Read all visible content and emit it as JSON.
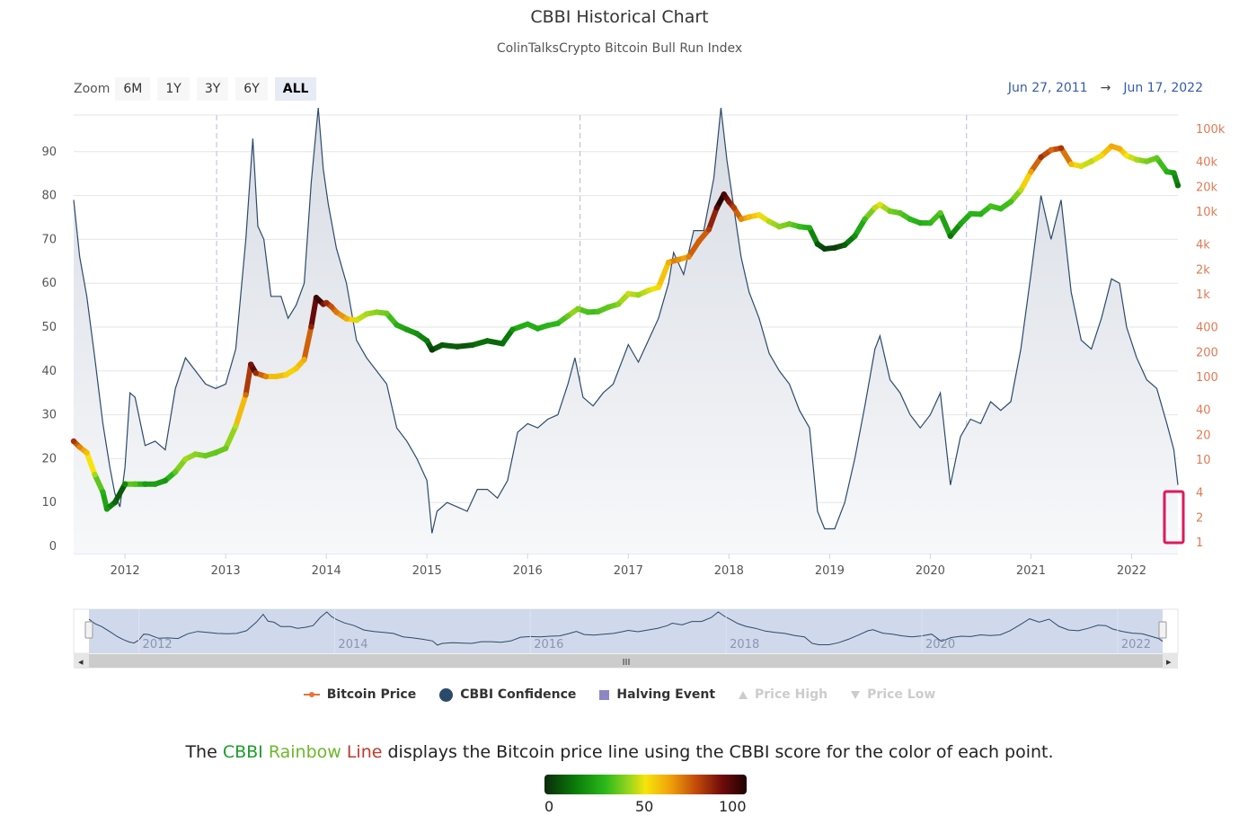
{
  "title": "CBBI Historical Chart",
  "subtitle": "ColinTalksCrypto Bitcoin Bull Run Index",
  "zoom": {
    "label": "Zoom",
    "buttons": [
      "6M",
      "1Y",
      "3Y",
      "6Y",
      "ALL"
    ],
    "active": "ALL"
  },
  "range": {
    "from": "Jun 27, 2011",
    "arrow": "→",
    "to": "Jun 17, 2022"
  },
  "colors": {
    "price_line": "#2b4a6b",
    "area_fill": "#eef0f4",
    "halving": "#8c86c7",
    "highlight": "#e0195a",
    "right_axis": "#e07b55"
  },
  "chart_data": {
    "type": "line",
    "title": "CBBI Historical Chart",
    "x_ticks": [
      "2012",
      "2013",
      "2014",
      "2015",
      "2016",
      "2017",
      "2018",
      "2019",
      "2020",
      "2021",
      "2022"
    ],
    "left_axis": {
      "label": "CBBI Confidence",
      "range": [
        0,
        100
      ],
      "ticks": [
        0,
        10,
        20,
        30,
        40,
        50,
        60,
        70,
        80,
        90
      ]
    },
    "right_axis": {
      "label": "Bitcoin Price",
      "scale": "log",
      "ticks": [
        "1",
        "2",
        "4",
        "10",
        "20",
        "40",
        "100",
        "200",
        "400",
        "1k",
        "2k",
        "4k",
        "10k",
        "20k",
        "40k",
        "100k"
      ],
      "tick_values": [
        1,
        2,
        4,
        10,
        20,
        40,
        100,
        200,
        400,
        1000,
        2000,
        4000,
        10000,
        20000,
        40000,
        100000
      ]
    },
    "halvings": [
      {
        "label": "H",
        "year": 2012.91
      },
      {
        "label": "H",
        "year": 2016.52
      },
      {
        "label": "H",
        "year": 2020.36
      }
    ],
    "series": [
      {
        "name": "CBBI Confidence",
        "points": [
          [
            2011.49,
            79
          ],
          [
            2011.55,
            66
          ],
          [
            2011.62,
            57
          ],
          [
            2011.7,
            43
          ],
          [
            2011.78,
            28
          ],
          [
            2011.85,
            18
          ],
          [
            2011.9,
            12
          ],
          [
            2011.95,
            9
          ],
          [
            2012.0,
            18
          ],
          [
            2012.05,
            35
          ],
          [
            2012.1,
            34
          ],
          [
            2012.2,
            23
          ],
          [
            2012.3,
            24
          ],
          [
            2012.4,
            22
          ],
          [
            2012.5,
            36
          ],
          [
            2012.6,
            43
          ],
          [
            2012.7,
            40
          ],
          [
            2012.8,
            37
          ],
          [
            2012.9,
            36
          ],
          [
            2013.0,
            37
          ],
          [
            2013.1,
            45
          ],
          [
            2013.2,
            70
          ],
          [
            2013.27,
            93
          ],
          [
            2013.32,
            73
          ],
          [
            2013.38,
            70
          ],
          [
            2013.45,
            57
          ],
          [
            2013.55,
            57
          ],
          [
            2013.62,
            52
          ],
          [
            2013.7,
            55
          ],
          [
            2013.78,
            60
          ],
          [
            2013.85,
            83
          ],
          [
            2013.92,
            100
          ],
          [
            2013.97,
            86
          ],
          [
            2014.02,
            78
          ],
          [
            2014.1,
            68
          ],
          [
            2014.2,
            60
          ],
          [
            2014.3,
            47
          ],
          [
            2014.4,
            43
          ],
          [
            2014.5,
            40
          ],
          [
            2014.6,
            37
          ],
          [
            2014.7,
            27
          ],
          [
            2014.8,
            24
          ],
          [
            2014.9,
            20
          ],
          [
            2015.0,
            15
          ],
          [
            2015.05,
            3
          ],
          [
            2015.1,
            8
          ],
          [
            2015.2,
            10
          ],
          [
            2015.3,
            9
          ],
          [
            2015.4,
            8
          ],
          [
            2015.5,
            13
          ],
          [
            2015.6,
            13
          ],
          [
            2015.7,
            11
          ],
          [
            2015.8,
            15
          ],
          [
            2015.9,
            26
          ],
          [
            2016.0,
            28
          ],
          [
            2016.1,
            27
          ],
          [
            2016.2,
            29
          ],
          [
            2016.3,
            30
          ],
          [
            2016.4,
            37
          ],
          [
            2016.47,
            43
          ],
          [
            2016.55,
            34
          ],
          [
            2016.65,
            32
          ],
          [
            2016.75,
            35
          ],
          [
            2016.85,
            37
          ],
          [
            2016.95,
            43
          ],
          [
            2017.0,
            46
          ],
          [
            2017.1,
            42
          ],
          [
            2017.2,
            47
          ],
          [
            2017.3,
            52
          ],
          [
            2017.4,
            60
          ],
          [
            2017.45,
            67
          ],
          [
            2017.55,
            62
          ],
          [
            2017.65,
            72
          ],
          [
            2017.75,
            72
          ],
          [
            2017.85,
            84
          ],
          [
            2017.92,
            100
          ],
          [
            2017.98,
            88
          ],
          [
            2018.05,
            77
          ],
          [
            2018.12,
            66
          ],
          [
            2018.2,
            58
          ],
          [
            2018.3,
            52
          ],
          [
            2018.4,
            44
          ],
          [
            2018.5,
            40
          ],
          [
            2018.6,
            37
          ],
          [
            2018.7,
            31
          ],
          [
            2018.8,
            27
          ],
          [
            2018.88,
            8
          ],
          [
            2018.95,
            4
          ],
          [
            2019.05,
            4
          ],
          [
            2019.15,
            10
          ],
          [
            2019.25,
            20
          ],
          [
            2019.35,
            32
          ],
          [
            2019.45,
            45
          ],
          [
            2019.5,
            48
          ],
          [
            2019.6,
            38
          ],
          [
            2019.7,
            35
          ],
          [
            2019.8,
            30
          ],
          [
            2019.9,
            27
          ],
          [
            2020.0,
            30
          ],
          [
            2020.1,
            35
          ],
          [
            2020.2,
            14
          ],
          [
            2020.3,
            25
          ],
          [
            2020.4,
            29
          ],
          [
            2020.5,
            28
          ],
          [
            2020.6,
            33
          ],
          [
            2020.7,
            31
          ],
          [
            2020.8,
            33
          ],
          [
            2020.9,
            45
          ],
          [
            2021.0,
            62
          ],
          [
            2021.1,
            80
          ],
          [
            2021.2,
            70
          ],
          [
            2021.3,
            79
          ],
          [
            2021.4,
            58
          ],
          [
            2021.5,
            47
          ],
          [
            2021.6,
            45
          ],
          [
            2021.7,
            52
          ],
          [
            2021.8,
            61
          ],
          [
            2021.88,
            60
          ],
          [
            2021.95,
            50
          ],
          [
            2022.05,
            43
          ],
          [
            2022.15,
            38
          ],
          [
            2022.25,
            36
          ],
          [
            2022.35,
            28
          ],
          [
            2022.42,
            22
          ],
          [
            2022.46,
            14
          ]
        ]
      },
      {
        "name": "Bitcoin Price",
        "points": [
          [
            2011.49,
            16.5
          ],
          [
            2011.55,
            14
          ],
          [
            2011.62,
            12
          ],
          [
            2011.7,
            6.5
          ],
          [
            2011.78,
            4
          ],
          [
            2011.82,
            2.5
          ],
          [
            2011.9,
            3
          ],
          [
            2012.0,
            5
          ],
          [
            2012.1,
            5
          ],
          [
            2012.2,
            5
          ],
          [
            2012.3,
            5
          ],
          [
            2012.4,
            5.5
          ],
          [
            2012.5,
            7
          ],
          [
            2012.6,
            10
          ],
          [
            2012.7,
            11.5
          ],
          [
            2012.8,
            11
          ],
          [
            2012.9,
            12
          ],
          [
            2013.0,
            13.5
          ],
          [
            2013.1,
            25
          ],
          [
            2013.2,
            60
          ],
          [
            2013.25,
            140
          ],
          [
            2013.3,
            110
          ],
          [
            2013.4,
            100
          ],
          [
            2013.5,
            100
          ],
          [
            2013.6,
            105
          ],
          [
            2013.7,
            125
          ],
          [
            2013.78,
            160
          ],
          [
            2013.85,
            400
          ],
          [
            2013.9,
            900
          ],
          [
            2013.97,
            750
          ],
          [
            2014.0,
            780
          ],
          [
            2014.05,
            700
          ],
          [
            2014.1,
            600
          ],
          [
            2014.2,
            500
          ],
          [
            2014.3,
            480
          ],
          [
            2014.4,
            570
          ],
          [
            2014.5,
            600
          ],
          [
            2014.6,
            580
          ],
          [
            2014.7,
            420
          ],
          [
            2014.8,
            370
          ],
          [
            2014.9,
            330
          ],
          [
            2015.0,
            270
          ],
          [
            2015.05,
            210
          ],
          [
            2015.15,
            240
          ],
          [
            2015.3,
            230
          ],
          [
            2015.45,
            240
          ],
          [
            2015.6,
            270
          ],
          [
            2015.75,
            250
          ],
          [
            2015.85,
            370
          ],
          [
            2016.0,
            430
          ],
          [
            2016.1,
            380
          ],
          [
            2016.2,
            415
          ],
          [
            2016.3,
            440
          ],
          [
            2016.4,
            540
          ],
          [
            2016.5,
            660
          ],
          [
            2016.6,
            600
          ],
          [
            2016.7,
            610
          ],
          [
            2016.8,
            690
          ],
          [
            2016.9,
            750
          ],
          [
            2017.0,
            1000
          ],
          [
            2017.1,
            970
          ],
          [
            2017.2,
            1100
          ],
          [
            2017.3,
            1200
          ],
          [
            2017.4,
            2400
          ],
          [
            2017.5,
            2600
          ],
          [
            2017.6,
            2800
          ],
          [
            2017.7,
            4300
          ],
          [
            2017.8,
            6000
          ],
          [
            2017.88,
            11000
          ],
          [
            2017.95,
            16000
          ],
          [
            2018.0,
            13000
          ],
          [
            2018.05,
            11000
          ],
          [
            2018.12,
            8000
          ],
          [
            2018.2,
            8500
          ],
          [
            2018.3,
            9000
          ],
          [
            2018.4,
            7500
          ],
          [
            2018.5,
            6500
          ],
          [
            2018.6,
            7000
          ],
          [
            2018.7,
            6500
          ],
          [
            2018.8,
            6300
          ],
          [
            2018.88,
            4000
          ],
          [
            2018.95,
            3500
          ],
          [
            2019.05,
            3600
          ],
          [
            2019.15,
            3900
          ],
          [
            2019.25,
            5000
          ],
          [
            2019.35,
            8000
          ],
          [
            2019.45,
            11000
          ],
          [
            2019.5,
            12000
          ],
          [
            2019.6,
            10000
          ],
          [
            2019.7,
            9500
          ],
          [
            2019.8,
            8000
          ],
          [
            2019.9,
            7200
          ],
          [
            2020.0,
            7200
          ],
          [
            2020.1,
            9500
          ],
          [
            2020.2,
            5000
          ],
          [
            2020.3,
            7000
          ],
          [
            2020.4,
            9300
          ],
          [
            2020.5,
            9200
          ],
          [
            2020.6,
            11500
          ],
          [
            2020.7,
            10700
          ],
          [
            2020.8,
            13000
          ],
          [
            2020.9,
            18000
          ],
          [
            2021.0,
            30000
          ],
          [
            2021.1,
            45000
          ],
          [
            2021.2,
            55000
          ],
          [
            2021.3,
            58000
          ],
          [
            2021.4,
            37000
          ],
          [
            2021.5,
            35000
          ],
          [
            2021.6,
            40000
          ],
          [
            2021.7,
            47000
          ],
          [
            2021.8,
            61000
          ],
          [
            2021.88,
            57000
          ],
          [
            2021.95,
            47000
          ],
          [
            2022.05,
            42000
          ],
          [
            2022.15,
            40000
          ],
          [
            2022.25,
            44000
          ],
          [
            2022.35,
            30000
          ],
          [
            2022.42,
            29000
          ],
          [
            2022.46,
            20500
          ]
        ]
      }
    ]
  },
  "navigator": {
    "labels": [
      "2012",
      "2014",
      "2016",
      "2018",
      "2020",
      "2022"
    ],
    "label_years": [
      2012,
      2014,
      2016,
      2018,
      2020,
      2022
    ],
    "scroll_grip": "III",
    "left_arrow": "◂",
    "right_arrow": "▸"
  },
  "legend": {
    "items": [
      {
        "label": "Bitcoin Price",
        "hidden": false
      },
      {
        "label": "CBBI Confidence",
        "hidden": false
      },
      {
        "label": "Halving Event",
        "hidden": false
      },
      {
        "label": "Price High",
        "hidden": true
      },
      {
        "label": "Price Low",
        "hidden": true
      }
    ]
  },
  "caption": {
    "prefix": "The ",
    "part_a": "CBBI ",
    "part_b": "Rainbow ",
    "part_c": "Line",
    "suffix": " displays the Bitcoin price line using the CBBI score for the color of each point."
  },
  "colorbar": {
    "labels": [
      "0",
      "50",
      "100"
    ]
  }
}
